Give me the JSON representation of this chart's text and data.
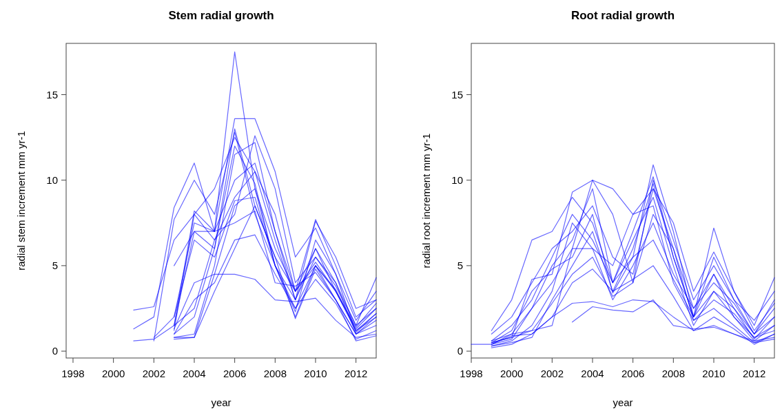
{
  "chart_data": [
    {
      "type": "line",
      "title": "Stem radial growth",
      "xlabel": "year",
      "ylabel": "radial stem increment mm yr-1",
      "xlim": [
        1997.66,
        2013
      ],
      "ylim": [
        -0.4,
        18
      ],
      "xticks": [
        1998,
        2000,
        2002,
        2004,
        2006,
        2008,
        2010,
        2012
      ],
      "yticks": [
        0,
        5,
        10,
        15
      ],
      "x": [
        2001,
        2002,
        2003,
        2004,
        2005,
        2006,
        2007,
        2008,
        2009,
        2010,
        2011,
        2012,
        2013
      ],
      "series": [
        {
          "color": "#0000ff",
          "values": [
            2.4,
            2.6,
            6.5,
            8.0,
            9.5,
            12.5,
            10.5,
            6.5,
            3.0,
            7.6,
            5.5,
            2.5,
            3.0
          ]
        },
        {
          "color": "#0000ff",
          "values": [
            1.3,
            2.0,
            8.4,
            11.0,
            7.0,
            17.5,
            9.5,
            6.0,
            3.5,
            6.0,
            4.0,
            1.5,
            2.5
          ]
        },
        {
          "color": "#0000ff",
          "values": [
            0.6,
            0.7,
            1.5,
            2.5,
            6.5,
            8.0,
            12.6,
            9.5,
            4.0,
            5.5,
            4.0,
            1.0,
            2.0
          ]
        },
        {
          "color": "#0000ff",
          "values": [
            null,
            0.6,
            7.7,
            10.0,
            8.0,
            12.8,
            8.0,
            5.0,
            2.5,
            5.0,
            3.5,
            1.2,
            2.2
          ]
        },
        {
          "color": "#0000ff",
          "values": [
            null,
            0.8,
            2.0,
            7.5,
            7.0,
            13.6,
            13.6,
            10.5,
            5.5,
            7.2,
            4.5,
            1.8,
            3.5
          ]
        },
        {
          "color": "#0000ff",
          "values": [
            null,
            null,
            0.7,
            0.8,
            4.5,
            8.5,
            9.5,
            5.0,
            2.0,
            5.0,
            3.0,
            1.0,
            1.5
          ]
        },
        {
          "color": "#0000ff",
          "values": [
            null,
            null,
            0.8,
            1.0,
            5.0,
            11.5,
            12.2,
            7.0,
            3.0,
            6.0,
            3.5,
            1.2,
            2.0
          ]
        },
        {
          "color": "#0000ff",
          "values": [
            null,
            null,
            1.3,
            4.0,
            4.5,
            4.5,
            4.2,
            3.0,
            2.9,
            3.1,
            1.8,
            0.8,
            1.0
          ]
        },
        {
          "color": "#0000ff",
          "values": [
            null,
            null,
            1.5,
            7.0,
            7.0,
            7.5,
            8.2,
            4.0,
            3.8,
            4.6,
            3.0,
            0.6,
            0.9
          ]
        },
        {
          "color": "#0000ff",
          "values": [
            null,
            null,
            1.2,
            8.0,
            6.5,
            9.0,
            10.5,
            8.0,
            3.5,
            5.2,
            3.5,
            1.4,
            2.8
          ]
        },
        {
          "color": "#0000ff",
          "values": [
            null,
            null,
            2.0,
            6.5,
            5.5,
            8.8,
            9.0,
            5.0,
            3.0,
            5.5,
            3.8,
            1.5,
            4.3
          ]
        },
        {
          "color": "#0000ff",
          "values": [
            null,
            null,
            5.0,
            7.0,
            6.0,
            13.0,
            8.5,
            5.5,
            3.5,
            5.0,
            3.6,
            1.3,
            2.5
          ]
        },
        {
          "color": "#0000ff",
          "values": [
            null,
            null,
            1.0,
            3.0,
            4.0,
            6.5,
            6.8,
            4.5,
            2.5,
            4.2,
            2.8,
            0.7,
            1.2
          ]
        },
        {
          "color": "#0000ff",
          "values": [
            null,
            null,
            1.5,
            8.2,
            7.0,
            10.0,
            11.0,
            7.0,
            3.5,
            7.7,
            5.0,
            2.0,
            3.0
          ]
        },
        {
          "color": "#0000ff",
          "values": [
            null,
            null,
            0.8,
            0.8,
            3.5,
            6.0,
            8.5,
            5.5,
            1.9,
            4.8,
            3.0,
            1.0,
            1.8
          ]
        },
        {
          "color": "#0000ff",
          "values": [
            null,
            null,
            1.0,
            2.0,
            6.0,
            12.0,
            9.8,
            5.0,
            2.3,
            6.5,
            4.5,
            1.1,
            2.2
          ]
        }
      ]
    },
    {
      "type": "line",
      "title": "Root radial growth",
      "xlabel": "year",
      "ylabel": "radial root increment mm yr-1",
      "xlim": [
        1998,
        2013
      ],
      "ylim": [
        -0.4,
        18
      ],
      "xticks": [
        1998,
        2000,
        2002,
        2004,
        2006,
        2008,
        2010,
        2012
      ],
      "yticks": [
        0,
        5,
        10,
        15
      ],
      "x": [
        1998,
        1999,
        2000,
        2001,
        2002,
        2003,
        2004,
        2005,
        2006,
        2007,
        2008,
        2009,
        2010,
        2011,
        2012,
        2013
      ],
      "series": [
        {
          "color": "#0000ff",
          "values": [
            0.4,
            0.4,
            1.0,
            1.2,
            1.5,
            6.0,
            10.0,
            9.5,
            8.0,
            9.5,
            6.0,
            2.5,
            4.5,
            2.0,
            0.6,
            1.5
          ]
        },
        {
          "color": "#0000ff",
          "values": [
            null,
            1.2,
            3.0,
            6.5,
            7.0,
            9.0,
            7.5,
            4.0,
            5.5,
            10.9,
            7.0,
            2.0,
            7.2,
            3.5,
            1.5,
            4.3
          ]
        },
        {
          "color": "#0000ff",
          "values": [
            null,
            0.5,
            0.8,
            4.2,
            4.5,
            9.3,
            10.0,
            8.0,
            4.0,
            10.0,
            6.5,
            3.0,
            5.0,
            3.0,
            1.8,
            3.5
          ]
        },
        {
          "color": "#0000ff",
          "values": [
            null,
            0.3,
            0.5,
            0.8,
            3.0,
            5.0,
            7.0,
            3.5,
            6.0,
            9.8,
            5.5,
            2.0,
            4.5,
            2.5,
            0.7,
            2.0
          ]
        },
        {
          "color": "#0000ff",
          "values": [
            null,
            0.6,
            1.0,
            2.5,
            5.0,
            6.5,
            9.5,
            4.0,
            6.5,
            9.0,
            5.0,
            1.5,
            3.5,
            2.0,
            0.8,
            1.5
          ]
        },
        {
          "color": "#0000ff",
          "values": [
            null,
            0.4,
            0.9,
            1.0,
            2.0,
            2.8,
            2.9,
            2.6,
            3.0,
            2.9,
            2.0,
            1.2,
            1.5,
            1.0,
            0.5,
            0.7
          ]
        },
        {
          "color": "#0000ff",
          "values": [
            null,
            null,
            null,
            null,
            null,
            1.7,
            2.6,
            2.4,
            2.3,
            3.0,
            1.5,
            1.3,
            1.4,
            1.0,
            0.6,
            0.8
          ]
        },
        {
          "color": "#0000ff",
          "values": [
            null,
            0.5,
            0.8,
            1.2,
            2.8,
            4.5,
            5.5,
            3.2,
            4.0,
            8.0,
            6.0,
            1.8,
            2.5,
            1.5,
            0.5,
            1.0
          ]
        },
        {
          "color": "#0000ff",
          "values": [
            null,
            0.3,
            0.6,
            1.5,
            3.5,
            7.5,
            6.0,
            3.0,
            5.0,
            7.5,
            4.5,
            2.5,
            4.0,
            2.8,
            1.0,
            2.5
          ]
        },
        {
          "color": "#0000ff",
          "values": [
            null,
            1.0,
            2.0,
            4.0,
            6.0,
            7.0,
            8.5,
            5.5,
            4.5,
            9.5,
            7.5,
            3.5,
            5.8,
            3.5,
            1.2,
            2.8
          ]
        },
        {
          "color": "#0000ff",
          "values": [
            null,
            0.2,
            0.4,
            1.0,
            2.0,
            4.0,
            4.8,
            3.5,
            4.2,
            5.0,
            3.2,
            1.2,
            2.0,
            1.3,
            0.4,
            1.0
          ]
        },
        {
          "color": "#0000ff",
          "values": [
            null,
            0.6,
            1.5,
            3.0,
            5.5,
            8.0,
            6.5,
            4.0,
            7.0,
            10.2,
            5.5,
            2.0,
            5.5,
            3.0,
            1.0,
            3.0
          ]
        },
        {
          "color": "#0000ff",
          "values": [
            null,
            0.4,
            0.7,
            2.5,
            4.0,
            6.0,
            6.0,
            5.0,
            8.0,
            8.5,
            4.0,
            1.8,
            3.0,
            2.2,
            0.8,
            1.2
          ]
        },
        {
          "color": "#0000ff",
          "values": [
            null,
            0.5,
            1.2,
            3.5,
            4.8,
            5.5,
            8.0,
            3.4,
            5.5,
            6.5,
            4.2,
            2.0,
            3.5,
            2.5,
            1.0,
            2.0
          ]
        }
      ]
    }
  ]
}
